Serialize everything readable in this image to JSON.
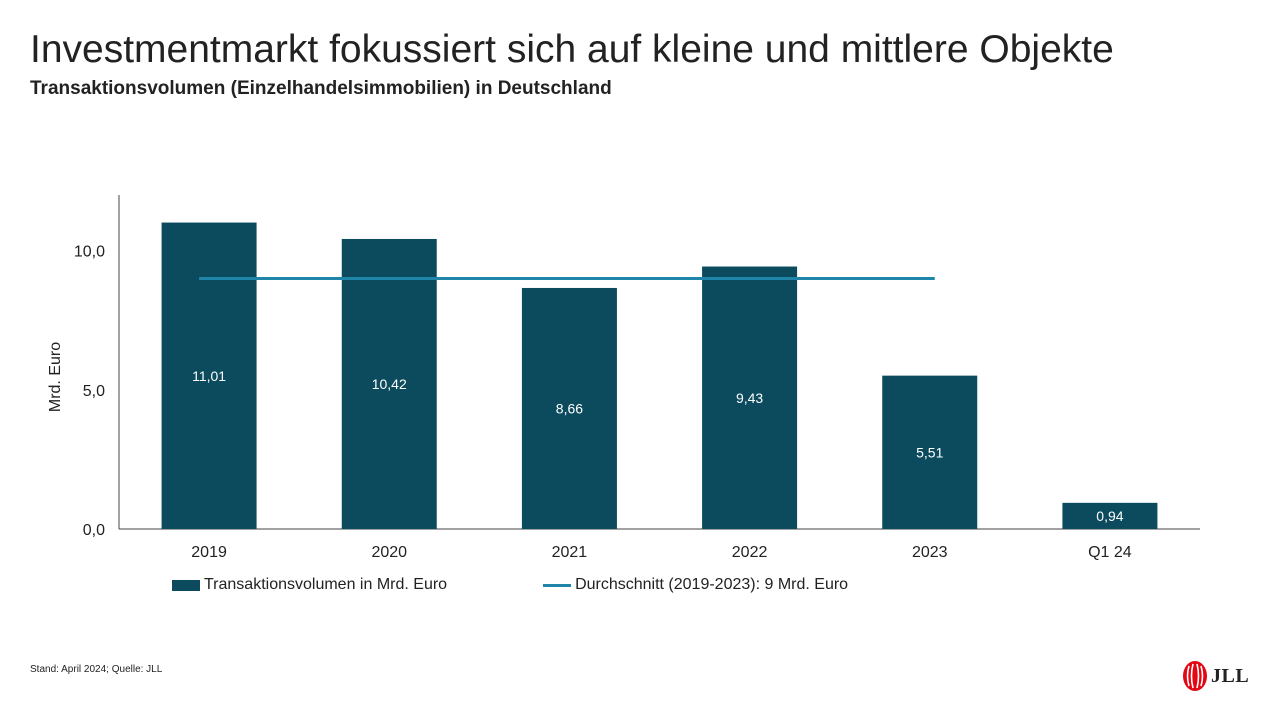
{
  "slide": {
    "title": "Investmentmarkt  fokussiert sich auf kleine und mittlere Objekte",
    "subtitle": "Transaktionsvolumen (Einzelhandelsimmobilien) in Deutschland",
    "footnote": "Stand: April 2024; Quelle: JLL",
    "logo_text": "JLL",
    "logo_icon": "jll-flame-logo-icon"
  },
  "chart_data": {
    "type": "bar",
    "title": "",
    "xlabel": "",
    "ylabel": "Mrd. Euro",
    "categories": [
      "2019",
      "2020",
      "2021",
      "2022",
      "2023",
      "Q1 24"
    ],
    "series": [
      {
        "name": "Transaktionsvolumen in Mrd. Euro",
        "values": [
          11.01,
          10.42,
          8.66,
          9.43,
          5.51,
          0.94
        ],
        "labels": [
          "11,01",
          "10,42",
          "8,66",
          "9,43",
          "5,51",
          "0,94"
        ],
        "color": "#0c4a5e"
      }
    ],
    "average_line": {
      "name": "Durchschnitt (2019-2023): 9 Mrd. Euro",
      "value": 9,
      "from_category": "2019",
      "to_category": "2023",
      "color": "#1f86a9"
    },
    "yticks": [
      {
        "value": 0,
        "label": "0,0"
      },
      {
        "value": 5,
        "label": "5,0"
      },
      {
        "value": 10,
        "label": "10,0"
      }
    ],
    "ylim": [
      0,
      12
    ],
    "grid": false,
    "legend_position": "bottom-left"
  }
}
